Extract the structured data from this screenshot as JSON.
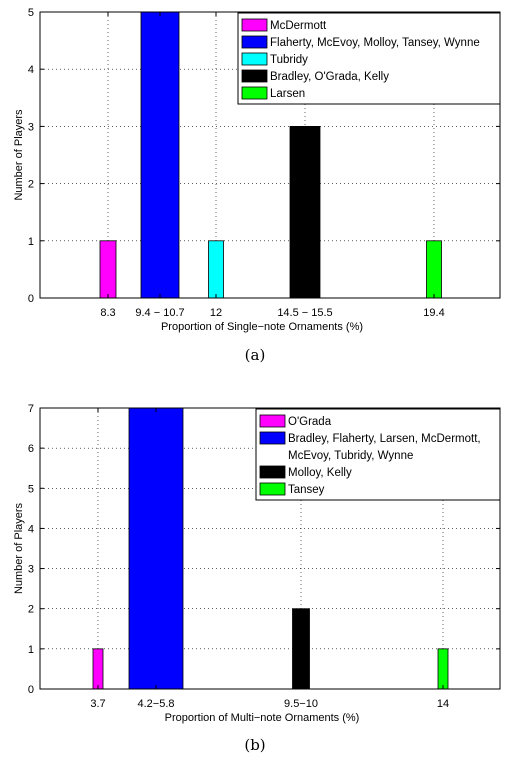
{
  "chart_data": [
    {
      "type": "bar",
      "caption": "(a)",
      "xlabel": "Proportion of Single−note Ornaments (%)",
      "ylabel": "Number of Players",
      "ylim": [
        0,
        5
      ],
      "yticks": [
        "0",
        "1",
        "2",
        "3",
        "4",
        "5"
      ],
      "grid": true,
      "legend_position": "top-right",
      "categories": [
        "8.3",
        "9.4 − 10.7",
        "12",
        "14.5 − 15.5",
        "19.4"
      ],
      "values": [
        1,
        5,
        1,
        3,
        1
      ],
      "series": [
        {
          "name": "McDermott",
          "color": "#ff00ff",
          "category": "8.3",
          "value": 1
        },
        {
          "name": "Flaherty, McEvoy, Molloy, Tansey, Wynne",
          "color": "#0000ff",
          "category": "9.4 − 10.7",
          "value": 5
        },
        {
          "name": "Tubridy",
          "color": "#00ffff",
          "category": "12",
          "value": 1
        },
        {
          "name": "Bradley, O'Grada, Kelly",
          "color": "#000000",
          "category": "14.5 − 15.5",
          "value": 3
        },
        {
          "name": "Larsen",
          "color": "#00ff00",
          "category": "19.4",
          "value": 1
        }
      ]
    },
    {
      "type": "bar",
      "caption": "(b)",
      "xlabel": "Proportion of Multi−note Ornaments (%)",
      "ylabel": "Number of Players",
      "ylim": [
        0,
        7
      ],
      "yticks": [
        "0",
        "1",
        "2",
        "3",
        "4",
        "5",
        "6",
        "7"
      ],
      "grid": true,
      "legend_position": "top-right",
      "categories": [
        "3.7",
        "4.2−5.8",
        "9.5−10",
        "14"
      ],
      "values": [
        1,
        7,
        2,
        1
      ],
      "series": [
        {
          "name": "O'Grada",
          "color": "#ff00ff",
          "category": "3.7",
          "value": 1
        },
        {
          "name": "Bradley, Flaherty, Larsen, McDermott,\nMcEvoy, Tubridy, Wynne",
          "color": "#0000ff",
          "category": "4.2−5.8",
          "value": 7
        },
        {
          "name": "Molloy, Kelly",
          "color": "#000000",
          "category": "9.5−10",
          "value": 2
        },
        {
          "name": "Tansey",
          "color": "#00ff00",
          "category": "14",
          "value": 1
        }
      ]
    }
  ]
}
